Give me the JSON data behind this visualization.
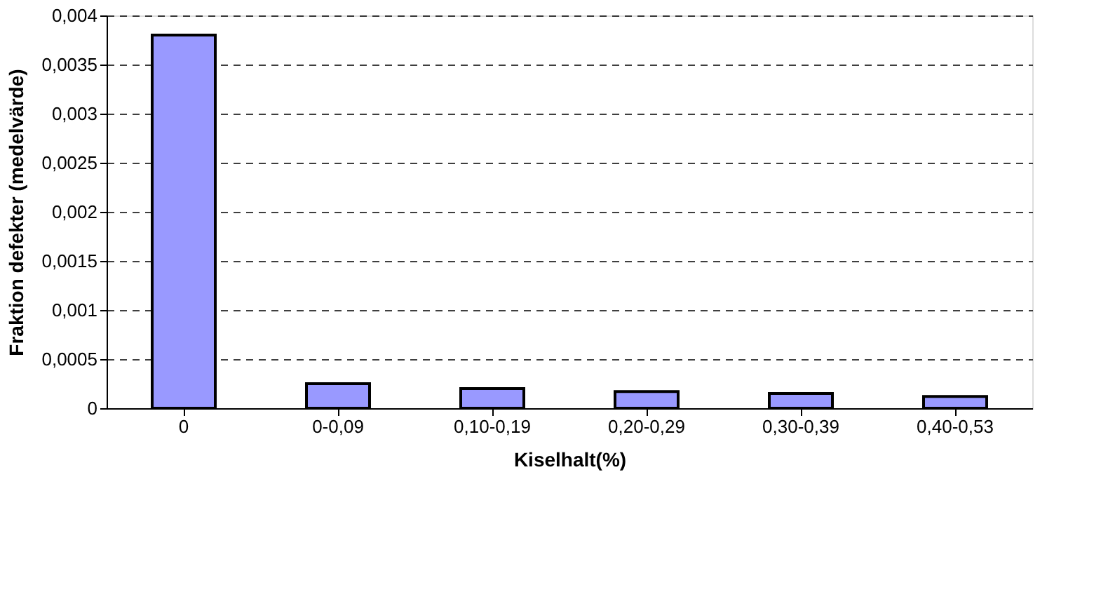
{
  "chart_data": {
    "type": "bar",
    "xlabel": "Kiselhalt(%)",
    "ylabel": "Fraktion defekter (medelvärde)",
    "categories": [
      "0",
      "0-0,09",
      "0,10-0,19",
      "0,20-0,29",
      "0,30-0,39",
      "0,40-0,53"
    ],
    "values": [
      0.0038,
      0.00025,
      0.0002,
      0.00017,
      0.00015,
      0.00012
    ],
    "color": "#9999ff",
    "ylim": [
      0,
      0.004
    ],
    "yticks": [
      0,
      {
        "value": 0.0005,
        "label": "0,0005"
      },
      {
        "value": 0.001,
        "label": "0,001"
      },
      {
        "value": 0.0015,
        "label": "0,0015"
      },
      {
        "value": 0.002,
        "label": "0,002"
      },
      {
        "value": 0.0025,
        "label": "0,0025"
      },
      {
        "value": 0.003,
        "label": "0,003"
      },
      {
        "value": 0.0035,
        "label": "0,0035"
      },
      {
        "value": 0.004,
        "label": "0,004"
      }
    ],
    "grid": "y",
    "legend": false
  }
}
